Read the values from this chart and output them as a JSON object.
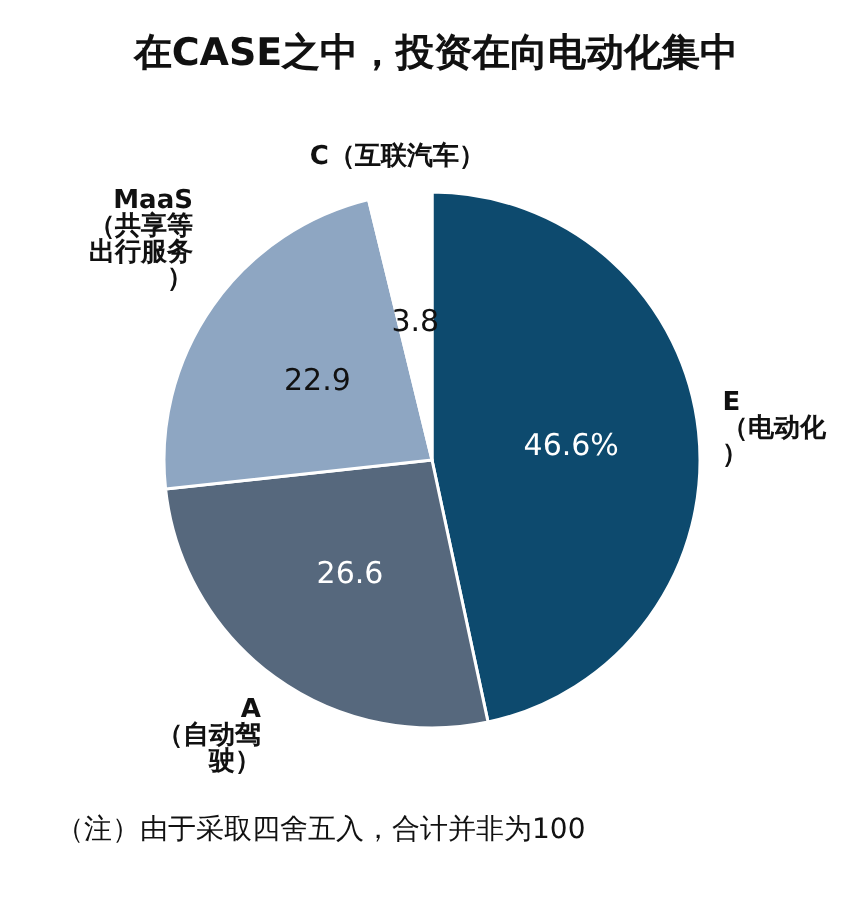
{
  "chart_data": {
    "type": "pie",
    "title": "在CASE之中，投资在向电动化集中",
    "categories": [
      "E（电动化）",
      "A（自动驾驶）",
      "MaaS（共享等出行服务）",
      "C（互联汽车）"
    ],
    "values": [
      46.6,
      26.6,
      22.9,
      3.8
    ],
    "colors": [
      "#0d4a6e",
      "#56687d",
      "#8ea6c2",
      "#ffffff"
    ],
    "value_labels": [
      "46.6%",
      "26.6",
      "22.9",
      "3.8"
    ],
    "annotations": [
      "（注）由于采取四舍五入，合计并非为100"
    ]
  }
}
